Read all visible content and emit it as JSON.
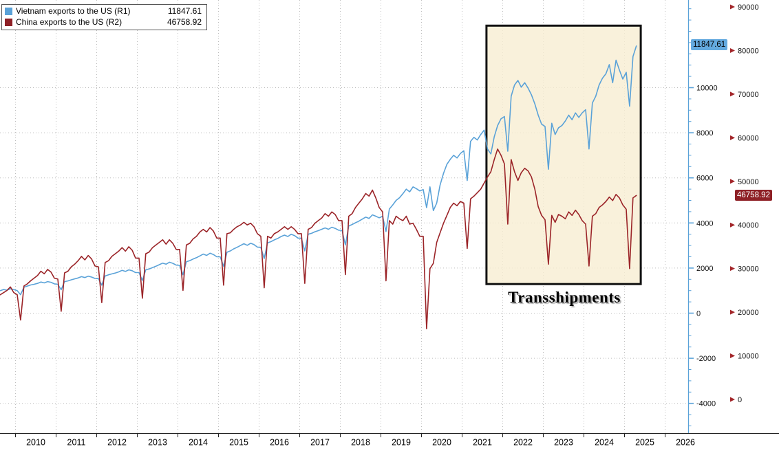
{
  "legend": {
    "items": [
      {
        "label": "Vietnam exports to the US (R1)",
        "value": "11847.61",
        "color": "#5aa2d8"
      },
      {
        "label": "China exports to the US (R2)",
        "value": "46758.92",
        "color": "#8e2026"
      }
    ]
  },
  "chart_data": {
    "type": "line",
    "title": "",
    "x_unit": "month",
    "x_start": "2009-08",
    "x_end": "2025-04",
    "grid": true,
    "legend_position": "top-left",
    "x_axis": {
      "years": [
        2010,
        2011,
        2012,
        2013,
        2014,
        2015,
        2016,
        2017,
        2018,
        2019,
        2020,
        2021,
        2022,
        2023,
        2024,
        2025,
        2026
      ]
    },
    "right_axis_1": {
      "name": "R1",
      "color": "#5aa2d8",
      "badge": "11847.61",
      "badge_bg": "#64aadf",
      "ticks": [
        10000,
        8000,
        6000,
        4000,
        2000,
        0,
        -2000,
        -4000
      ]
    },
    "right_axis_2": {
      "name": "R2",
      "color": "#a3262a",
      "badge": "46758.92",
      "badge_bg": "#8e2026",
      "ticks": [
        90000,
        80000,
        70000,
        60000,
        50000,
        40000,
        30000,
        20000,
        10000,
        0
      ]
    },
    "annotation": {
      "label": "Transshipments",
      "x_from": 2021.6,
      "x_to": 2025.4,
      "y_top_r1": 12750,
      "y_bottom_r1": 1290,
      "fill": "#f8edd2",
      "border_color": "#111111"
    },
    "series": [
      {
        "name": "Vietnam exports to the US (R1)",
        "axis": "R1",
        "color": "#5aa2d8",
        "current_value": 11847.61,
        "values": [
          1000,
          1050,
          1020,
          1080,
          1050,
          1000,
          820,
          1150,
          1200,
          1250,
          1280,
          1320,
          1380,
          1340,
          1400,
          1370,
          1300,
          1280,
          1040,
          1400,
          1430,
          1480,
          1520,
          1560,
          1620,
          1580,
          1640,
          1600,
          1540,
          1530,
          1240,
          1650,
          1700,
          1740,
          1780,
          1830,
          1900,
          1850,
          1920,
          1880,
          1800,
          1800,
          1450,
          1920,
          1960,
          2020,
          2080,
          2150,
          2220,
          2170,
          2260,
          2210,
          2130,
          2120,
          1700,
          2280,
          2330,
          2400,
          2460,
          2540,
          2620,
          2560,
          2660,
          2600,
          2500,
          2500,
          2080,
          2700,
          2760,
          2850,
          2920,
          3000,
          3080,
          3010,
          3100,
          3040,
          2930,
          2920,
          2420,
          3120,
          3170,
          3250,
          3310,
          3400,
          3460,
          3400,
          3500,
          3440,
          3330,
          3320,
          2760,
          3500,
          3540,
          3610,
          3660,
          3720,
          3780,
          3720,
          3810,
          3760,
          3680,
          3670,
          3020,
          3870,
          3930,
          4010,
          4080,
          4170,
          4260,
          4200,
          4360,
          4300,
          4230,
          4300,
          3620,
          4620,
          4800,
          5000,
          5120,
          5300,
          5500,
          5380,
          5600,
          5520,
          5420,
          5480,
          4680,
          5600,
          4550,
          4880,
          5680,
          6200,
          6600,
          6820,
          7000,
          6880,
          7080,
          7200,
          5880,
          7620,
          7800,
          7680,
          7920,
          8120,
          7280,
          7060,
          7820,
          8320,
          8620,
          8720,
          7180,
          9620,
          10120,
          10320,
          10020,
          10220,
          9980,
          9680,
          9280,
          8780,
          8380,
          8280,
          6380,
          8420,
          7920,
          8220,
          8320,
          8520,
          8780,
          8580,
          8880,
          8680,
          8880,
          9020,
          7280,
          9320,
          9620,
          10120,
          10420,
          10620,
          11020,
          10220,
          11220,
          10780,
          10380,
          10680,
          9180,
          11380,
          11847.61
        ]
      },
      {
        "name": "China exports to the US (R2)",
        "axis": "R2",
        "color": "#9b2428",
        "current_value": 46758.92,
        "values": [
          24000,
          24500,
          25000,
          25800,
          24500,
          24000,
          18200,
          26000,
          26500,
          27200,
          27800,
          28400,
          29400,
          28800,
          29800,
          29200,
          27800,
          27600,
          20200,
          29000,
          29400,
          30400,
          31000,
          31800,
          32800,
          32000,
          33000,
          32200,
          30600,
          30400,
          22200,
          31400,
          31800,
          32800,
          33400,
          34000,
          34800,
          34000,
          35000,
          34200,
          32400,
          32400,
          23200,
          33400,
          33800,
          34800,
          35400,
          36000,
          36600,
          35600,
          36600,
          35800,
          34400,
          34400,
          25000,
          35400,
          35800,
          36800,
          37400,
          38400,
          39000,
          38400,
          39400,
          38600,
          37000,
          37000,
          26200,
          38000,
          38200,
          39000,
          39600,
          40000,
          40600,
          40000,
          40400,
          39600,
          38000,
          37400,
          25600,
          37400,
          37000,
          38000,
          38400,
          39000,
          39600,
          39000,
          39600,
          39000,
          38000,
          38000,
          26600,
          39000,
          39400,
          40400,
          41000,
          41600,
          42600,
          42000,
          43000,
          42400,
          41000,
          41000,
          28600,
          42000,
          42600,
          44000,
          45000,
          46000,
          47200,
          46600,
          48000,
          46200,
          44000,
          43000,
          27200,
          41000,
          40200,
          42000,
          41400,
          41000,
          42000,
          40200,
          40400,
          39000,
          37400,
          37400,
          16200,
          30000,
          31200,
          36000,
          38200,
          40400,
          42200,
          44000,
          45000,
          44400,
          45400,
          45000,
          34600,
          46000,
          46600,
          47400,
          48200,
          49600,
          51000,
          52200,
          55000,
          57400,
          56000,
          54000,
          40200,
          55000,
          52200,
          50200,
          52000,
          53000,
          52400,
          51000,
          48200,
          44200,
          42200,
          41200,
          31000,
          42200,
          40600,
          42400,
          42000,
          41400,
          43000,
          42200,
          43400,
          42400,
          41000,
          40200,
          30600,
          42000,
          42600,
          44000,
          44600,
          45400,
          46400,
          45600,
          47000,
          46200,
          44600,
          43600,
          30000,
          46200,
          46758.92
        ]
      }
    ]
  }
}
